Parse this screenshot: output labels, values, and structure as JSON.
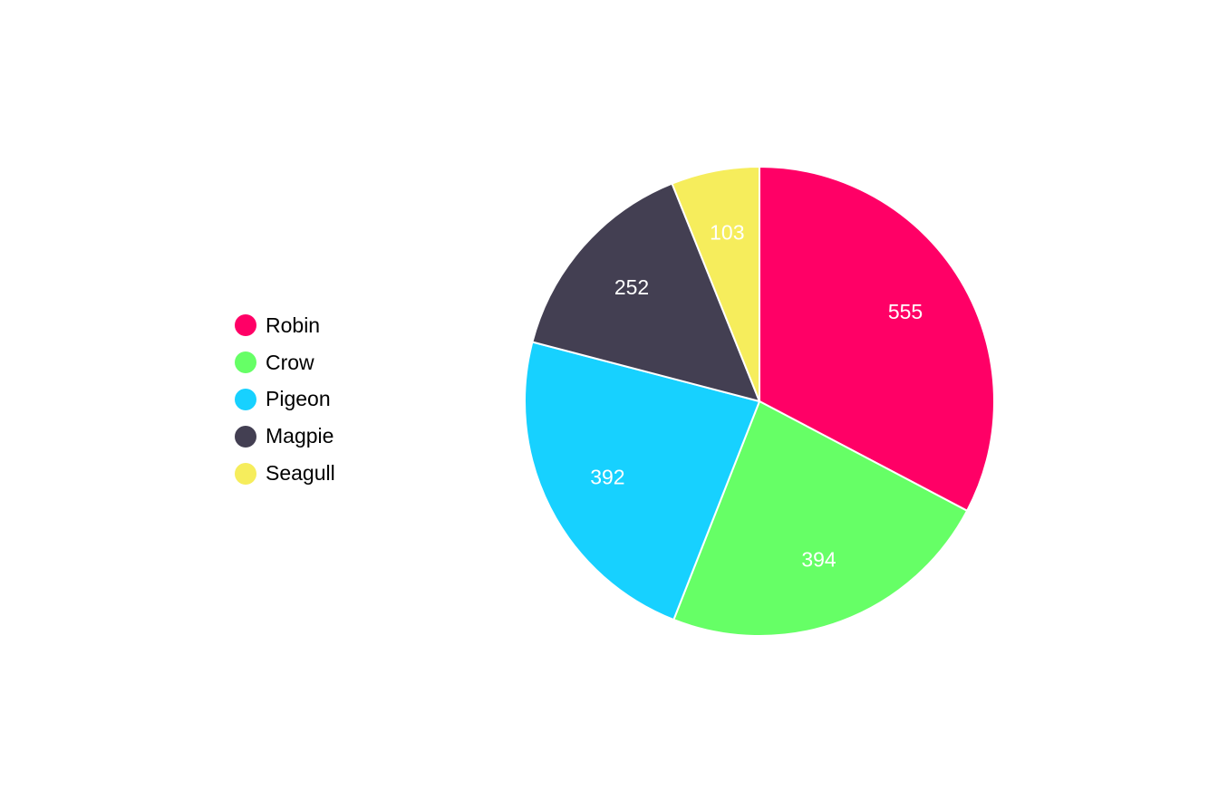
{
  "chart_data": {
    "type": "pie",
    "title": "",
    "categories": [
      "Robin",
      "Crow",
      "Pigeon",
      "Magpie",
      "Seagull"
    ],
    "values": [
      555,
      394,
      392,
      252,
      103
    ],
    "colors": [
      "#ff0066",
      "#66ff66",
      "#17d1ff",
      "#433f52",
      "#f6ed5c"
    ],
    "data_labels": [
      "555",
      "394",
      "392",
      "252",
      "103"
    ],
    "start_angle": "12 o'clock",
    "direction": "clockwise",
    "legend_position": "left"
  }
}
